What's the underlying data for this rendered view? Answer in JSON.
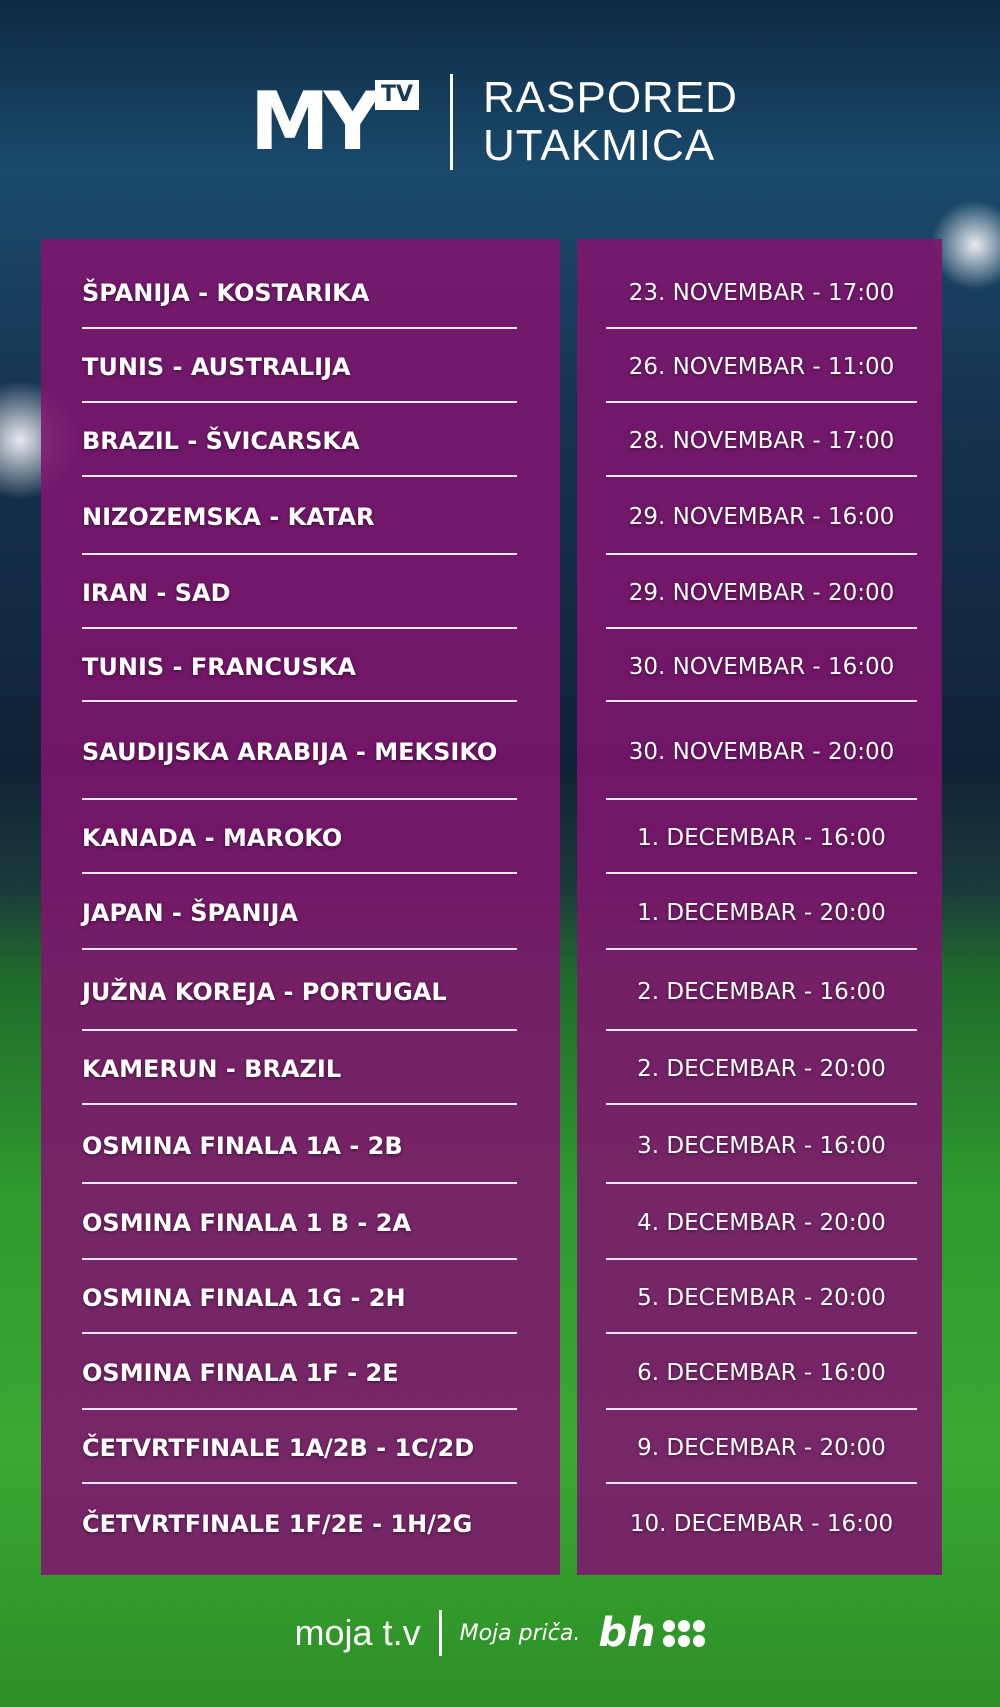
{
  "header": {
    "logo_main": "MY",
    "logo_sub": "TV",
    "title_line1": "RASPORED",
    "title_line2": "UTAKMICA"
  },
  "matches": [
    {
      "teams": "ŠPANIJA - KOSTARIKA",
      "date": "23. NOVEMBAR - 17:00"
    },
    {
      "teams": "TUNIS - AUSTRALIJA",
      "date": "26. NOVEMBAR - 11:00"
    },
    {
      "teams": "BRAZIL - ŠVICARSKA",
      "date": "28. NOVEMBAR - 17:00"
    },
    {
      "teams": "NIZOZEMSKA - KATAR",
      "date": "29. NOVEMBAR - 16:00"
    },
    {
      "teams": "IRAN - SAD",
      "date": "29. NOVEMBAR - 20:00"
    },
    {
      "teams": "TUNIS - FRANCUSKA",
      "date": "30. NOVEMBAR - 16:00"
    },
    {
      "teams": "SAUDIJSKA ARABIJA - MEKSIKO",
      "date": "30. NOVEMBAR - 20:00"
    },
    {
      "teams": "KANADA - MAROKO",
      "date": "1. DECEMBAR - 16:00"
    },
    {
      "teams": "JAPAN - ŠPANIJA",
      "date": "1. DECEMBAR - 20:00"
    },
    {
      "teams": "JUŽNA KOREJA - PORTUGAL",
      "date": "2. DECEMBAR - 16:00"
    },
    {
      "teams": "KAMERUN - BRAZIL",
      "date": "2. DECEMBAR - 20:00"
    },
    {
      "teams": "OSMINA FINALA 1A - 2B",
      "date": "3. DECEMBAR - 16:00"
    },
    {
      "teams": "OSMINA FINALA 1 B - 2A",
      "date": "4. DECEMBAR - 20:00"
    },
    {
      "teams": "OSMINA FINALA 1G - 2H",
      "date": "5. DECEMBAR - 20:00"
    },
    {
      "teams": "OSMINA FINALA 1F - 2E",
      "date": "6. DECEMBAR - 16:00"
    },
    {
      "teams": "ČETVRTFINALE 1A/2B - 1C/2D",
      "date": "9. DECEMBAR - 20:00"
    },
    {
      "teams": "ČETVRTFINALE 1F/2E - 1H/2G",
      "date": "10. DECEMBAR - 16:00"
    }
  ],
  "footer": {
    "brand": "moja t.v",
    "slogan": "Moja priča.",
    "partner": "bh"
  },
  "colors": {
    "panel": "#80146e",
    "grass": "#3aa832",
    "sky": "#0d2a44"
  }
}
